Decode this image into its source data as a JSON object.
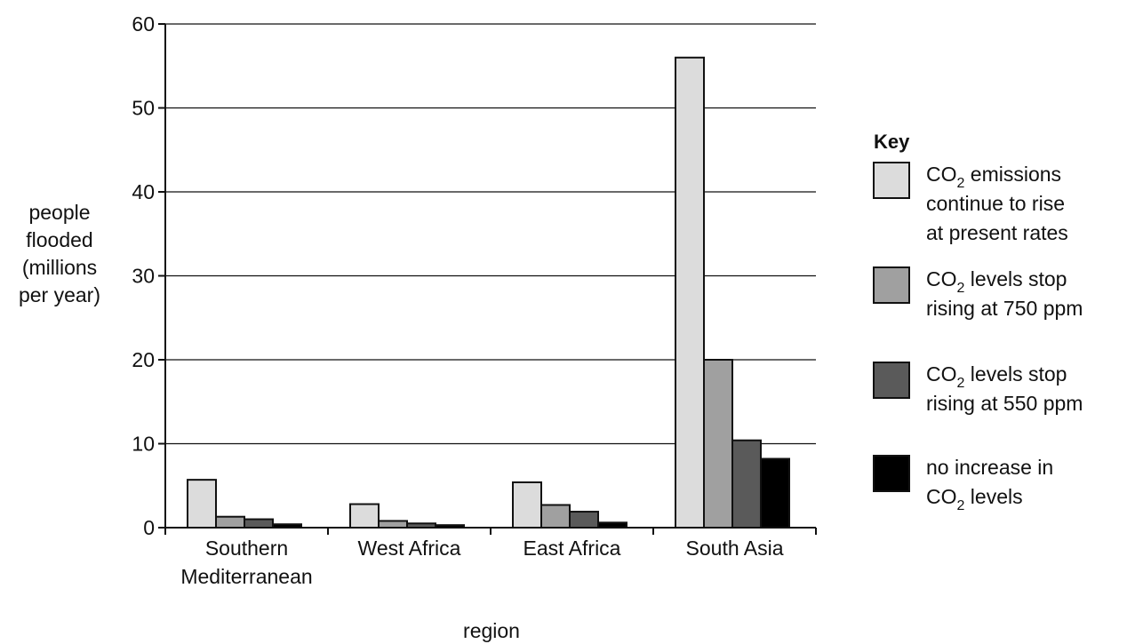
{
  "chart_data": {
    "type": "bar",
    "xlabel": "region",
    "ylabel_lines": [
      "people",
      "flooded",
      "(millions",
      "per year)"
    ],
    "ylim": [
      0,
      60
    ],
    "yticks": [
      "0",
      "10",
      "20",
      "30",
      "40",
      "50",
      "60"
    ],
    "grid": true,
    "legend_position": "right",
    "categories": [
      [
        "Southern",
        "Mediterranean"
      ],
      [
        "West Africa"
      ],
      [
        "East Africa"
      ],
      [
        "South Asia"
      ]
    ],
    "series": [
      {
        "name": "CO₂ emissions continue to rise at present rates",
        "color": "#dcdcdc",
        "values": [
          5.7,
          2.8,
          5.4,
          56
        ]
      },
      {
        "name": "CO₂ levels stop rising at 750 ppm",
        "color": "#a0a0a0",
        "values": [
          1.3,
          0.8,
          2.7,
          20
        ]
      },
      {
        "name": "CO₂ levels stop rising at 550 ppm",
        "color": "#5a5a5a",
        "values": [
          1.0,
          0.5,
          1.9,
          10.4
        ]
      },
      {
        "name": "no increase in CO₂ levels",
        "color": "#000000",
        "values": [
          0.4,
          0.3,
          0.6,
          8.2
        ]
      }
    ]
  },
  "legend": {
    "title": "Key",
    "entries": [
      {
        "lines": [
          [
            "CO",
            "2",
            " emissions"
          ],
          [
            "continue to rise"
          ],
          [
            "at present rates"
          ]
        ]
      },
      {
        "lines": [
          [
            "CO",
            "2",
            " levels stop"
          ],
          [
            "rising at 750 ppm"
          ]
        ]
      },
      {
        "lines": [
          [
            "CO",
            "2",
            " levels stop"
          ],
          [
            "rising at 550 ppm"
          ]
        ]
      },
      {
        "lines": [
          [
            "no increase in"
          ],
          [
            "CO",
            "2",
            " levels"
          ]
        ]
      }
    ]
  }
}
